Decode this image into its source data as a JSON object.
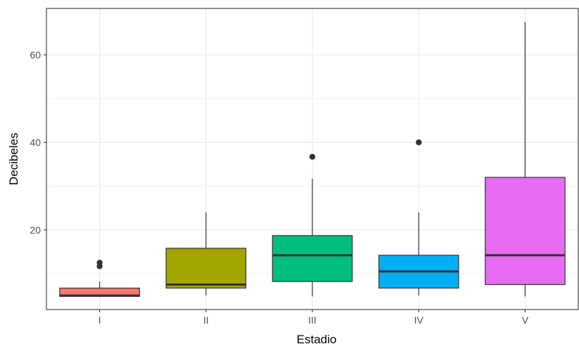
{
  "chart_data": {
    "type": "box",
    "xlabel": "Estadio",
    "ylabel": "Decibeles",
    "ylim": [
      1.8,
      70.6
    ],
    "yticks": [
      20,
      40,
      60
    ],
    "ytick_labels": [
      "20",
      "40",
      "60"
    ],
    "grid": true,
    "legend": "none",
    "categories": [
      "I",
      "II",
      "III",
      "IV",
      "V"
    ],
    "boxes": [
      {
        "category": "I",
        "whisker_low": 4.8,
        "q1": 4.8,
        "median": 5.0,
        "q3": 6.7,
        "whisker_high": 8.2,
        "outliers": [
          11.7,
          12.5
        ],
        "color": "#F8766D"
      },
      {
        "category": "II",
        "whisker_low": 5.0,
        "q1": 6.7,
        "median": 7.5,
        "q3": 15.8,
        "whisker_high": 24.0,
        "outliers": [],
        "color": "#A3A500"
      },
      {
        "category": "III",
        "whisker_low": 4.8,
        "q1": 8.2,
        "median": 14.2,
        "q3": 18.7,
        "whisker_high": 31.7,
        "outliers": [
          36.7
        ],
        "color": "#00BF7D"
      },
      {
        "category": "IV",
        "whisker_low": 5.0,
        "q1": 6.7,
        "median": 10.5,
        "q3": 14.2,
        "whisker_high": 24.0,
        "outliers": [
          40.0
        ],
        "color": "#00B0F6"
      },
      {
        "category": "V",
        "whisker_low": 4.8,
        "q1": 7.5,
        "median": 14.2,
        "q3": 32.0,
        "whisker_high": 67.5,
        "outliers": [],
        "color": "#E76BF3"
      }
    ]
  }
}
